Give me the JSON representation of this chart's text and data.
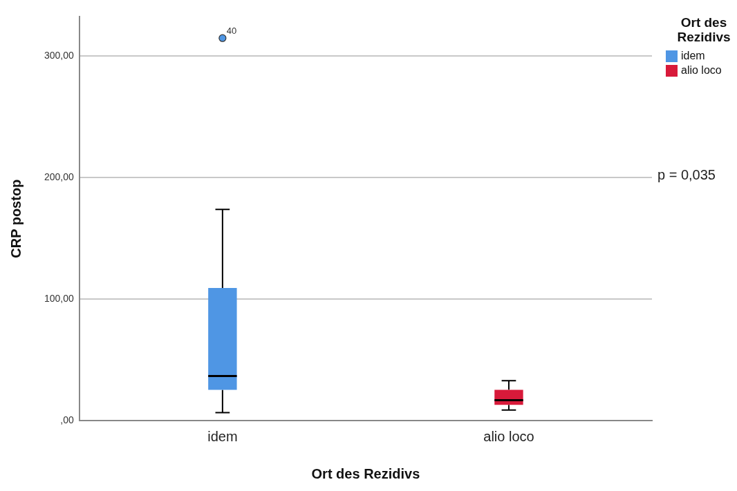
{
  "chart_data": {
    "type": "box",
    "xlabel": "Ort des Rezidivs",
    "ylabel": "CRP postop",
    "legend_title": "Ort des Rezidivs",
    "categories": [
      "idem",
      "alio loco"
    ],
    "series": [
      {
        "name": "idem",
        "color": "#4f96e4",
        "boxes": [
          {
            "low": 6.5,
            "q1": 25.3,
            "median": 36.6,
            "q3": 109,
            "high": 173.7,
            "outliers": [
              314.5
            ]
          },
          null
        ]
      },
      {
        "name": "alio loco",
        "color": "#d81a3a",
        "boxes": [
          null,
          {
            "low": 8.6,
            "q1": 12.9,
            "median": 16.7,
            "q3": 25.3,
            "high": 32.8
          }
        ]
      }
    ],
    "ylim": [
      0,
      332
    ],
    "yticks": [
      {
        "value": 0,
        "label": ",00"
      },
      {
        "value": 100,
        "label": "100,00"
      },
      {
        "value": 200,
        "label": "200,00"
      },
      {
        "value": 300,
        "label": "300,00"
      }
    ],
    "grid": "y",
    "legend": "top right",
    "annotations": [
      "40",
      "p = 0,035"
    ]
  }
}
